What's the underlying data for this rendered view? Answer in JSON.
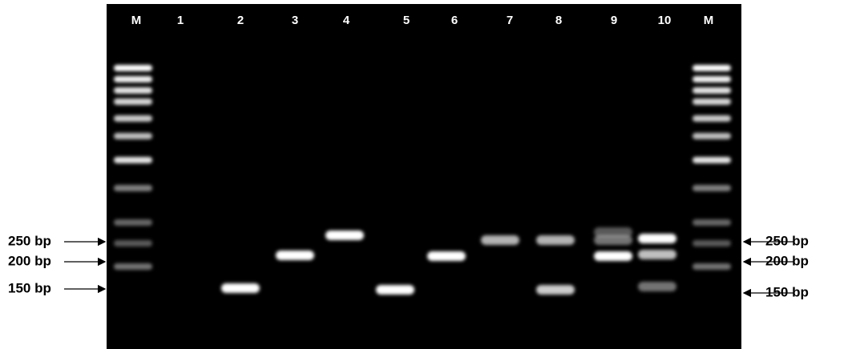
{
  "lanes": [
    "M",
    "1",
    "2",
    "3",
    "4",
    "5",
    "6",
    "7",
    "8",
    "9",
    "10",
    "M"
  ],
  "left_markers": [
    "250 bp",
    "200 bp",
    "150 bp"
  ],
  "right_markers": [
    "250 bp",
    "200 bp",
    "150 bp"
  ]
}
